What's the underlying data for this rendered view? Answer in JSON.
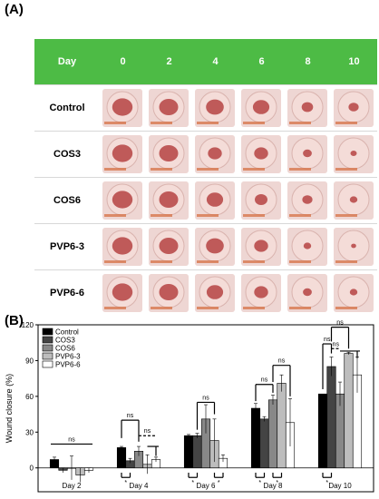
{
  "panel_a": {
    "label": "(A)",
    "header_first": "Day",
    "days": [
      "0",
      "2",
      "4",
      "6",
      "8",
      "10"
    ],
    "rows": [
      "Control",
      "COS3",
      "COS6",
      "PVP6-3",
      "PVP6-6"
    ],
    "colors": {
      "header": "#4dbb45",
      "skin": "#e9c9c5",
      "wound": "#b23a3a"
    },
    "wound_size": [
      [
        0.8,
        0.75,
        0.7,
        0.65,
        0.45,
        0.4
      ],
      [
        0.8,
        0.75,
        0.55,
        0.55,
        0.35,
        0.25
      ],
      [
        0.8,
        0.75,
        0.65,
        0.5,
        0.4,
        0.3
      ],
      [
        0.8,
        0.75,
        0.7,
        0.55,
        0.3,
        0.2
      ],
      [
        0.8,
        0.75,
        0.65,
        0.55,
        0.35,
        0.3
      ]
    ]
  },
  "panel_b": {
    "label": "(B)",
    "significance": {
      "ns": "ns",
      "star": "*"
    }
  },
  "chart_data": {
    "type": "bar",
    "ylabel": "Wound closure (%)",
    "ylim": [
      -20,
      120
    ],
    "yticks": [
      0,
      30,
      60,
      90,
      120
    ],
    "categories": [
      "Day 2",
      "Day 4",
      "Day 6",
      "Day 8",
      "Day 10"
    ],
    "legend_position": "top-left",
    "series": [
      {
        "name": "Control",
        "color": "#000000",
        "values": [
          7,
          17,
          27,
          50,
          62
        ],
        "errors": [
          2,
          1,
          1,
          4,
          0
        ]
      },
      {
        "name": "COS3",
        "color": "#444444",
        "values": [
          -2,
          6,
          27,
          41,
          85
        ],
        "errors": [
          2,
          2,
          2,
          2,
          8
        ]
      },
      {
        "name": "COS6",
        "color": "#888888",
        "values": [
          0,
          14,
          41,
          57,
          62
        ],
        "errors": [
          10,
          4,
          12,
          4,
          10
        ]
      },
      {
        "name": "PVP6-3",
        "color": "#bdbdbd",
        "values": [
          -6,
          3,
          23,
          71,
          96
        ],
        "errors": [
          6,
          8,
          18,
          7,
          1
        ]
      },
      {
        "name": "PVP6-6",
        "color": "#ffffff",
        "values": [
          -2,
          7,
          8,
          38,
          78
        ],
        "errors": [
          2,
          2,
          3,
          20,
          15
        ]
      }
    ]
  }
}
